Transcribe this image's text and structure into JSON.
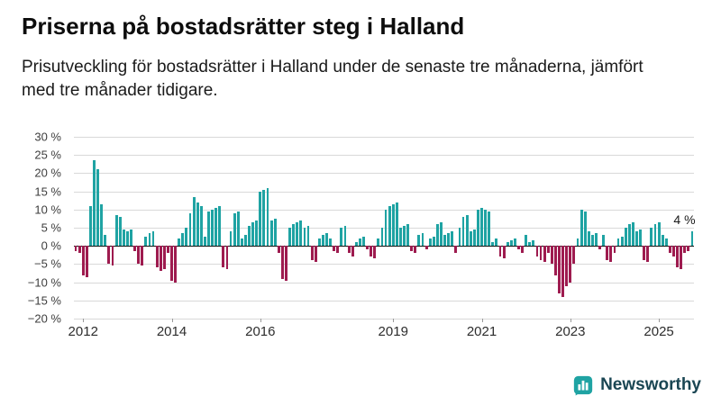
{
  "title": "Priserna på bostadsrätter steg i Halland",
  "subtitle": "Prisutveckling för bostadsrätter i Halland under de senaste tre månaderna, jämfört med tre månader tidigare.",
  "footer": {
    "brand": "Newsworthy",
    "brand_color": "#1a4653"
  },
  "chart_data": {
    "type": "bar",
    "title": "Priserna på bostadsrätter steg i Halland",
    "unit": "%",
    "frequency": "monthly",
    "start": "2011-11",
    "grid": true,
    "ylim": [
      -20,
      30
    ],
    "yticks": [
      {
        "value": 30,
        "label": "30 %"
      },
      {
        "value": 25,
        "label": "25 %"
      },
      {
        "value": 20,
        "label": "20 %"
      },
      {
        "value": 15,
        "label": "15 %"
      },
      {
        "value": 10,
        "label": "10 %"
      },
      {
        "value": 5,
        "label": "5 %"
      },
      {
        "value": 0,
        "label": "0 %"
      },
      {
        "value": -5,
        "label": "−5 %"
      },
      {
        "value": -10,
        "label": "−10 %"
      },
      {
        "value": -15,
        "label": "−15 %"
      },
      {
        "value": -20,
        "label": "−20 %"
      }
    ],
    "xticks": [
      {
        "year": 2012,
        "label": "2012"
      },
      {
        "year": 2014,
        "label": "2014"
      },
      {
        "year": 2016,
        "label": "2016"
      },
      {
        "year": 2019,
        "label": "2019"
      },
      {
        "year": 2021,
        "label": "2021"
      },
      {
        "year": 2023,
        "label": "2023"
      },
      {
        "year": 2025,
        "label": "2025"
      }
    ],
    "colors": {
      "positive": "#1fa3a3",
      "negative": "#9e1b4f"
    },
    "annotation": {
      "label": "4 %",
      "value": 4
    },
    "values": [
      -1.5,
      -2,
      -8,
      -8.5,
      11,
      23.5,
      21,
      11.5,
      3,
      -5,
      -5.5,
      8.5,
      8,
      4.5,
      4,
      4.5,
      -1.5,
      -5,
      -5.5,
      2.5,
      3.5,
      4,
      -6,
      -7,
      -6.5,
      -2,
      -9.5,
      -10,
      2,
      3.5,
      5,
      9,
      13.5,
      12,
      11,
      2.5,
      9.5,
      10,
      10.5,
      11,
      -6,
      -6.5,
      4,
      9,
      9.5,
      2,
      3,
      5.5,
      6.5,
      7,
      15,
      15.5,
      16,
      7,
      7.5,
      -2,
      -9,
      -9.5,
      5,
      6,
      6.5,
      7,
      5,
      5.5,
      -4,
      -4.5,
      2,
      3,
      3.5,
      2,
      -1.5,
      -2,
      5,
      5.5,
      -2,
      -3,
      1,
      2,
      2.5,
      -1,
      -3,
      -3.5,
      2,
      5,
      10,
      11,
      11.5,
      12,
      5,
      5.5,
      6,
      -1.5,
      -2,
      3,
      3.5,
      -1,
      2,
      2.5,
      6,
      6.5,
      3,
      3.5,
      4,
      -2,
      5,
      8,
      8.5,
      4,
      4.5,
      10,
      10.5,
      10,
      9.5,
      1,
      2,
      -3,
      -3.5,
      1,
      1.5,
      2,
      -1,
      -2,
      3,
      1,
      1.5,
      -3,
      -4,
      -4.5,
      -2,
      -5,
      -8,
      -13,
      -14,
      -11,
      -10,
      -5,
      2,
      10,
      9.5,
      4,
      3,
      3.5,
      -1,
      3,
      -4,
      -4.5,
      -2,
      2,
      2.5,
      5,
      6,
      6.5,
      4,
      4.5,
      -4,
      -4.5,
      5,
      6,
      6.5,
      3,
      2,
      -2,
      -3,
      -6,
      -6.5,
      -2,
      -1.5,
      4
    ]
  }
}
